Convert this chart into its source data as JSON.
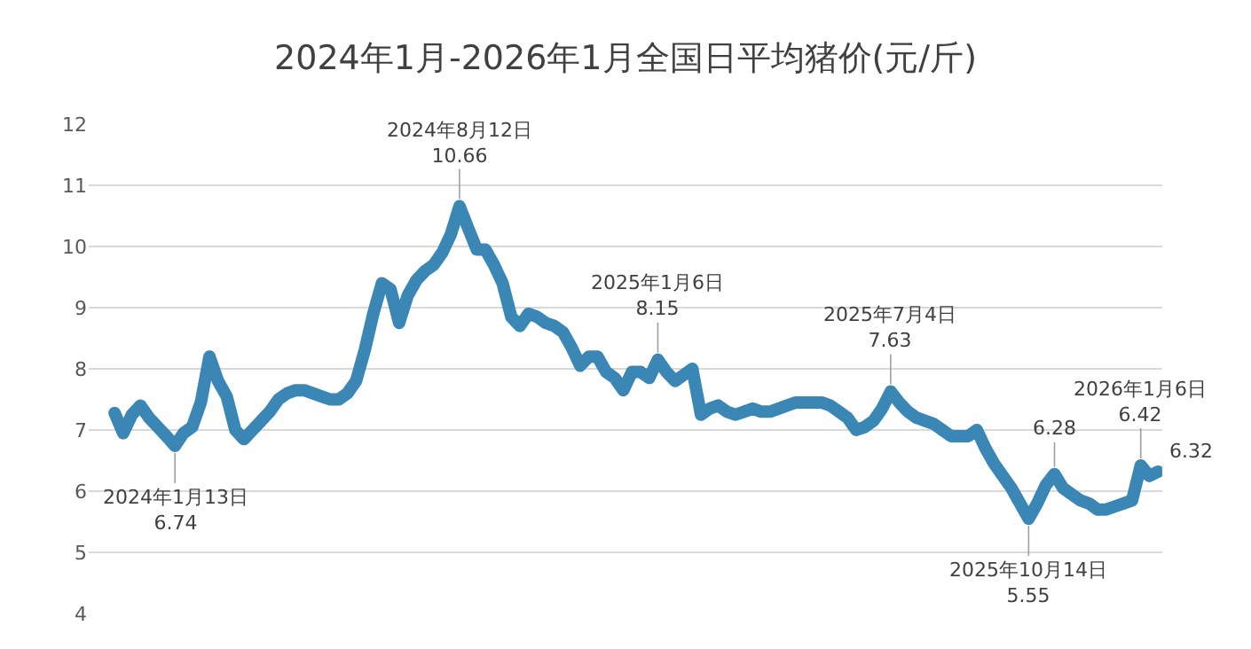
{
  "chart_data": {
    "type": "line",
    "title": "2024年1月-2026年1月全国日平均猪价(元/斤)",
    "categories": [
      null,
      null,
      null,
      null,
      null,
      null,
      null,
      null,
      null,
      null,
      null,
      null,
      null,
      null,
      null,
      null,
      null,
      null,
      null,
      null,
      null,
      null,
      null,
      null,
      null,
      null,
      null,
      null,
      null,
      null,
      null,
      null,
      null,
      null,
      null,
      null,
      null,
      null,
      null,
      null,
      null,
      null,
      null,
      null,
      null,
      null,
      null,
      null,
      null,
      null,
      null,
      null,
      null,
      null,
      null,
      null,
      null,
      null,
      null,
      null,
      null,
      null,
      null,
      null,
      null,
      null,
      null,
      null,
      null,
      null,
      null,
      null,
      null,
      null,
      null,
      null,
      null,
      null,
      null,
      null,
      null,
      null,
      null,
      null,
      null,
      null,
      null,
      null,
      null,
      null,
      null,
      null,
      null,
      null,
      null,
      null,
      null,
      null,
      null,
      null,
      null,
      null,
      null,
      null,
      null,
      null,
      null,
      null,
      null,
      null,
      null,
      null,
      null,
      null,
      null,
      null,
      null,
      null,
      null,
      null,
      null,
      null
    ],
    "series": [
      {
        "color": "#3a87b5",
        "values": [
          7.28,
          6.95,
          7.25,
          7.4,
          7.2,
          7.05,
          6.9,
          6.74,
          6.95,
          7.05,
          7.45,
          8.2,
          7.8,
          7.55,
          7.0,
          6.85,
          7.0,
          7.15,
          7.3,
          7.5,
          7.6,
          7.65,
          7.65,
          7.6,
          7.55,
          7.5,
          7.5,
          7.6,
          7.8,
          8.3,
          8.9,
          9.4,
          9.3,
          8.75,
          9.2,
          9.45,
          9.6,
          9.7,
          9.9,
          10.2,
          10.66,
          10.3,
          9.95,
          9.95,
          9.7,
          9.4,
          8.85,
          8.7,
          8.9,
          8.85,
          8.75,
          8.7,
          8.6,
          8.35,
          8.05,
          8.2,
          8.2,
          7.95,
          7.85,
          7.65,
          7.95,
          7.95,
          7.85,
          8.15,
          7.95,
          7.8,
          7.9,
          8.0,
          7.25,
          7.35,
          7.4,
          7.3,
          7.25,
          7.3,
          7.35,
          7.3,
          7.3,
          7.35,
          7.4,
          7.45,
          7.45,
          7.45,
          7.45,
          7.4,
          7.3,
          7.2,
          7.0,
          7.05,
          7.15,
          7.35,
          7.63,
          7.45,
          7.3,
          7.2,
          7.15,
          7.1,
          7.0,
          6.9,
          6.9,
          6.9,
          7.0,
          6.7,
          6.45,
          6.25,
          6.05,
          5.8,
          5.55,
          5.8,
          6.1,
          6.28,
          6.05,
          5.95,
          5.85,
          5.8,
          5.7,
          5.7,
          5.75,
          5.8,
          5.85,
          6.42,
          6.25,
          6.32
        ],
        "value_labels": [
          null,
          null,
          null,
          null,
          null,
          null,
          null,
          null,
          null,
          null,
          null,
          null,
          null,
          null,
          null,
          null,
          null,
          null,
          null,
          null,
          null,
          null,
          null,
          null,
          null,
          null,
          null,
          null,
          null,
          null,
          null,
          null,
          null,
          null,
          null,
          null,
          null,
          null,
          null,
          null,
          null,
          null,
          null,
          null,
          null,
          null,
          null,
          null,
          null,
          null,
          null,
          null,
          null,
          null,
          null,
          null,
          null,
          null,
          null,
          null,
          null,
          null,
          null,
          null,
          null,
          null,
          null,
          null,
          null,
          null,
          null,
          null,
          null,
          null,
          null,
          null,
          null,
          null,
          null,
          null,
          null,
          null,
          null,
          null,
          null,
          null,
          null,
          null,
          null,
          null,
          null,
          null,
          null,
          null,
          null,
          null,
          null,
          null,
          null,
          null,
          null,
          null,
          null,
          null,
          null,
          null,
          null,
          null,
          null,
          null,
          null,
          null,
          null,
          null,
          null,
          null,
          null,
          null,
          null,
          null,
          null,
          "6.32"
        ]
      }
    ],
    "ylim": [
      4,
      12
    ],
    "yticks": [
      4,
      5,
      6,
      7,
      8,
      9,
      10,
      11,
      12
    ],
    "grid": "y",
    "tick_labels": "y",
    "annotations": [
      {
        "text": "2024年1月13日\n6.74",
        "y": 6.74
      },
      {
        "text": "2024年8月12日\n10.66",
        "y": 10.66
      },
      {
        "text": "2025年1月6日\n8.15",
        "y": 8.15
      },
      {
        "text": "2025年7月4日\n7.63",
        "y": 7.63
      },
      {
        "text": "2025年10月14日\n5.55",
        "y": 5.55
      },
      {
        "text": "6.28",
        "y": 6.28
      },
      {
        "text": "2026年1月6日\n6.42",
        "y": 6.42
      }
    ]
  }
}
